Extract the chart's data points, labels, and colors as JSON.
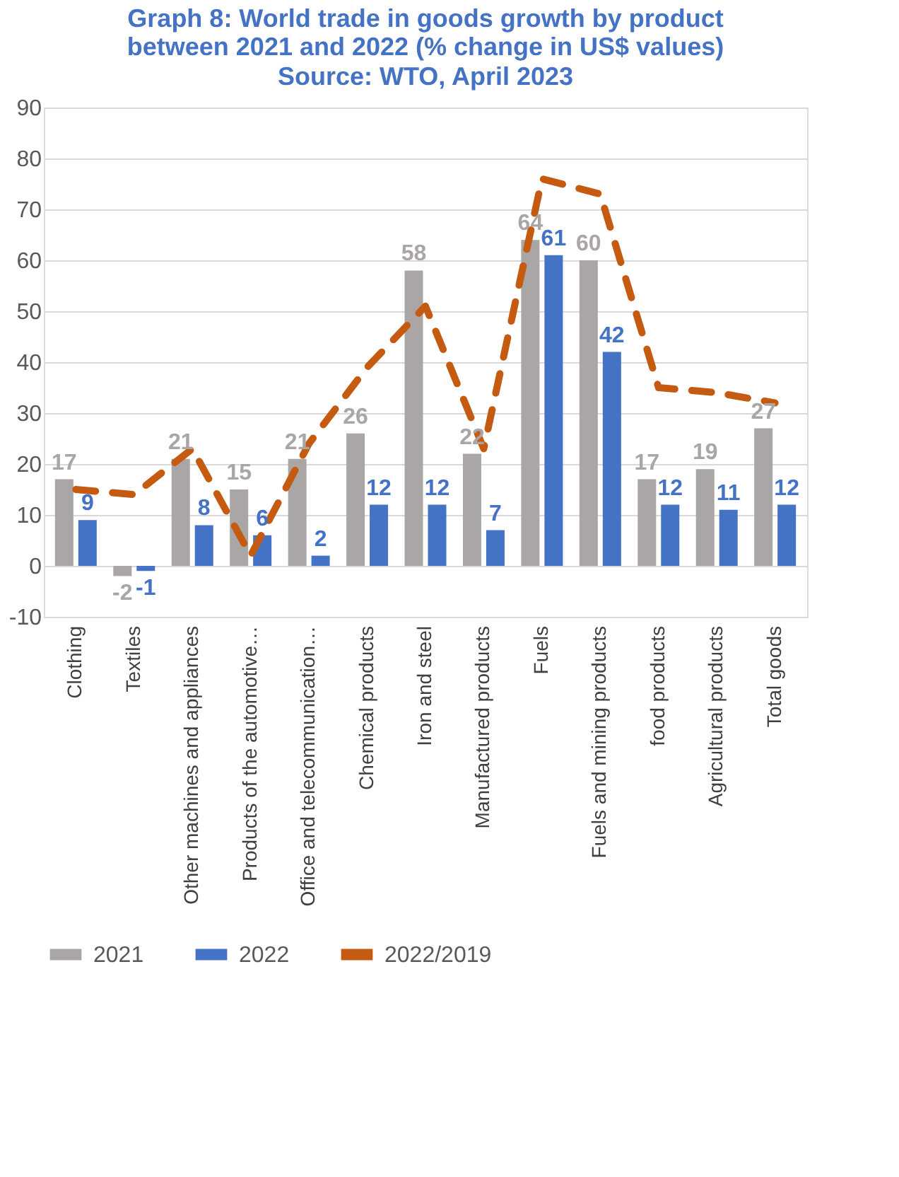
{
  "chart_data": {
    "type": "bar",
    "title": "Graph 8: World trade in goods growth by product between 2021 and 2022 (% change in US$ values)",
    "subtitle": "Source: WTO, April 2023",
    "categories": [
      "Clothing",
      "Textiles",
      "Other machines and appliances",
      "Products of the automotive…",
      "Office and telecommunication…",
      "Chemical products",
      "Iron and steel",
      "Manufactured products",
      "Fuels",
      "Fuels and mining products",
      "food products",
      "Agricultural products",
      "Total goods"
    ],
    "series": [
      {
        "name": "2021",
        "color": "#aaa6a5",
        "values": [
          17,
          -2,
          21,
          15,
          21,
          26,
          58,
          22,
          64,
          60,
          17,
          19,
          27
        ],
        "value_labels": [
          "17",
          "-2",
          "21",
          "15",
          "21",
          "26",
          "58",
          "22",
          "64",
          "60",
          "17",
          "19",
          "27"
        ]
      },
      {
        "name": "2022",
        "color": "#4472c4",
        "values": [
          9,
          -1,
          8,
          6,
          2,
          12,
          12,
          7,
          61,
          42,
          12,
          11,
          12
        ],
        "value_labels": [
          "9",
          "-1",
          "8",
          "6",
          "2",
          "12",
          "12",
          "7",
          "61",
          "42",
          "12",
          "11",
          "12"
        ]
      },
      {
        "name": "2022/2019",
        "type": "line",
        "color": "#c55a11",
        "line_style": "dashed",
        "values": [
          15,
          14,
          23,
          2,
          24,
          39,
          51,
          23,
          76,
          73,
          35,
          34,
          32
        ]
      }
    ],
    "ylim": [
      -10,
      90
    ],
    "yticks": [
      -10,
      0,
      10,
      20,
      30,
      40,
      50,
      60,
      70,
      80,
      90
    ],
    "grid": "y",
    "legend": "bottom"
  }
}
